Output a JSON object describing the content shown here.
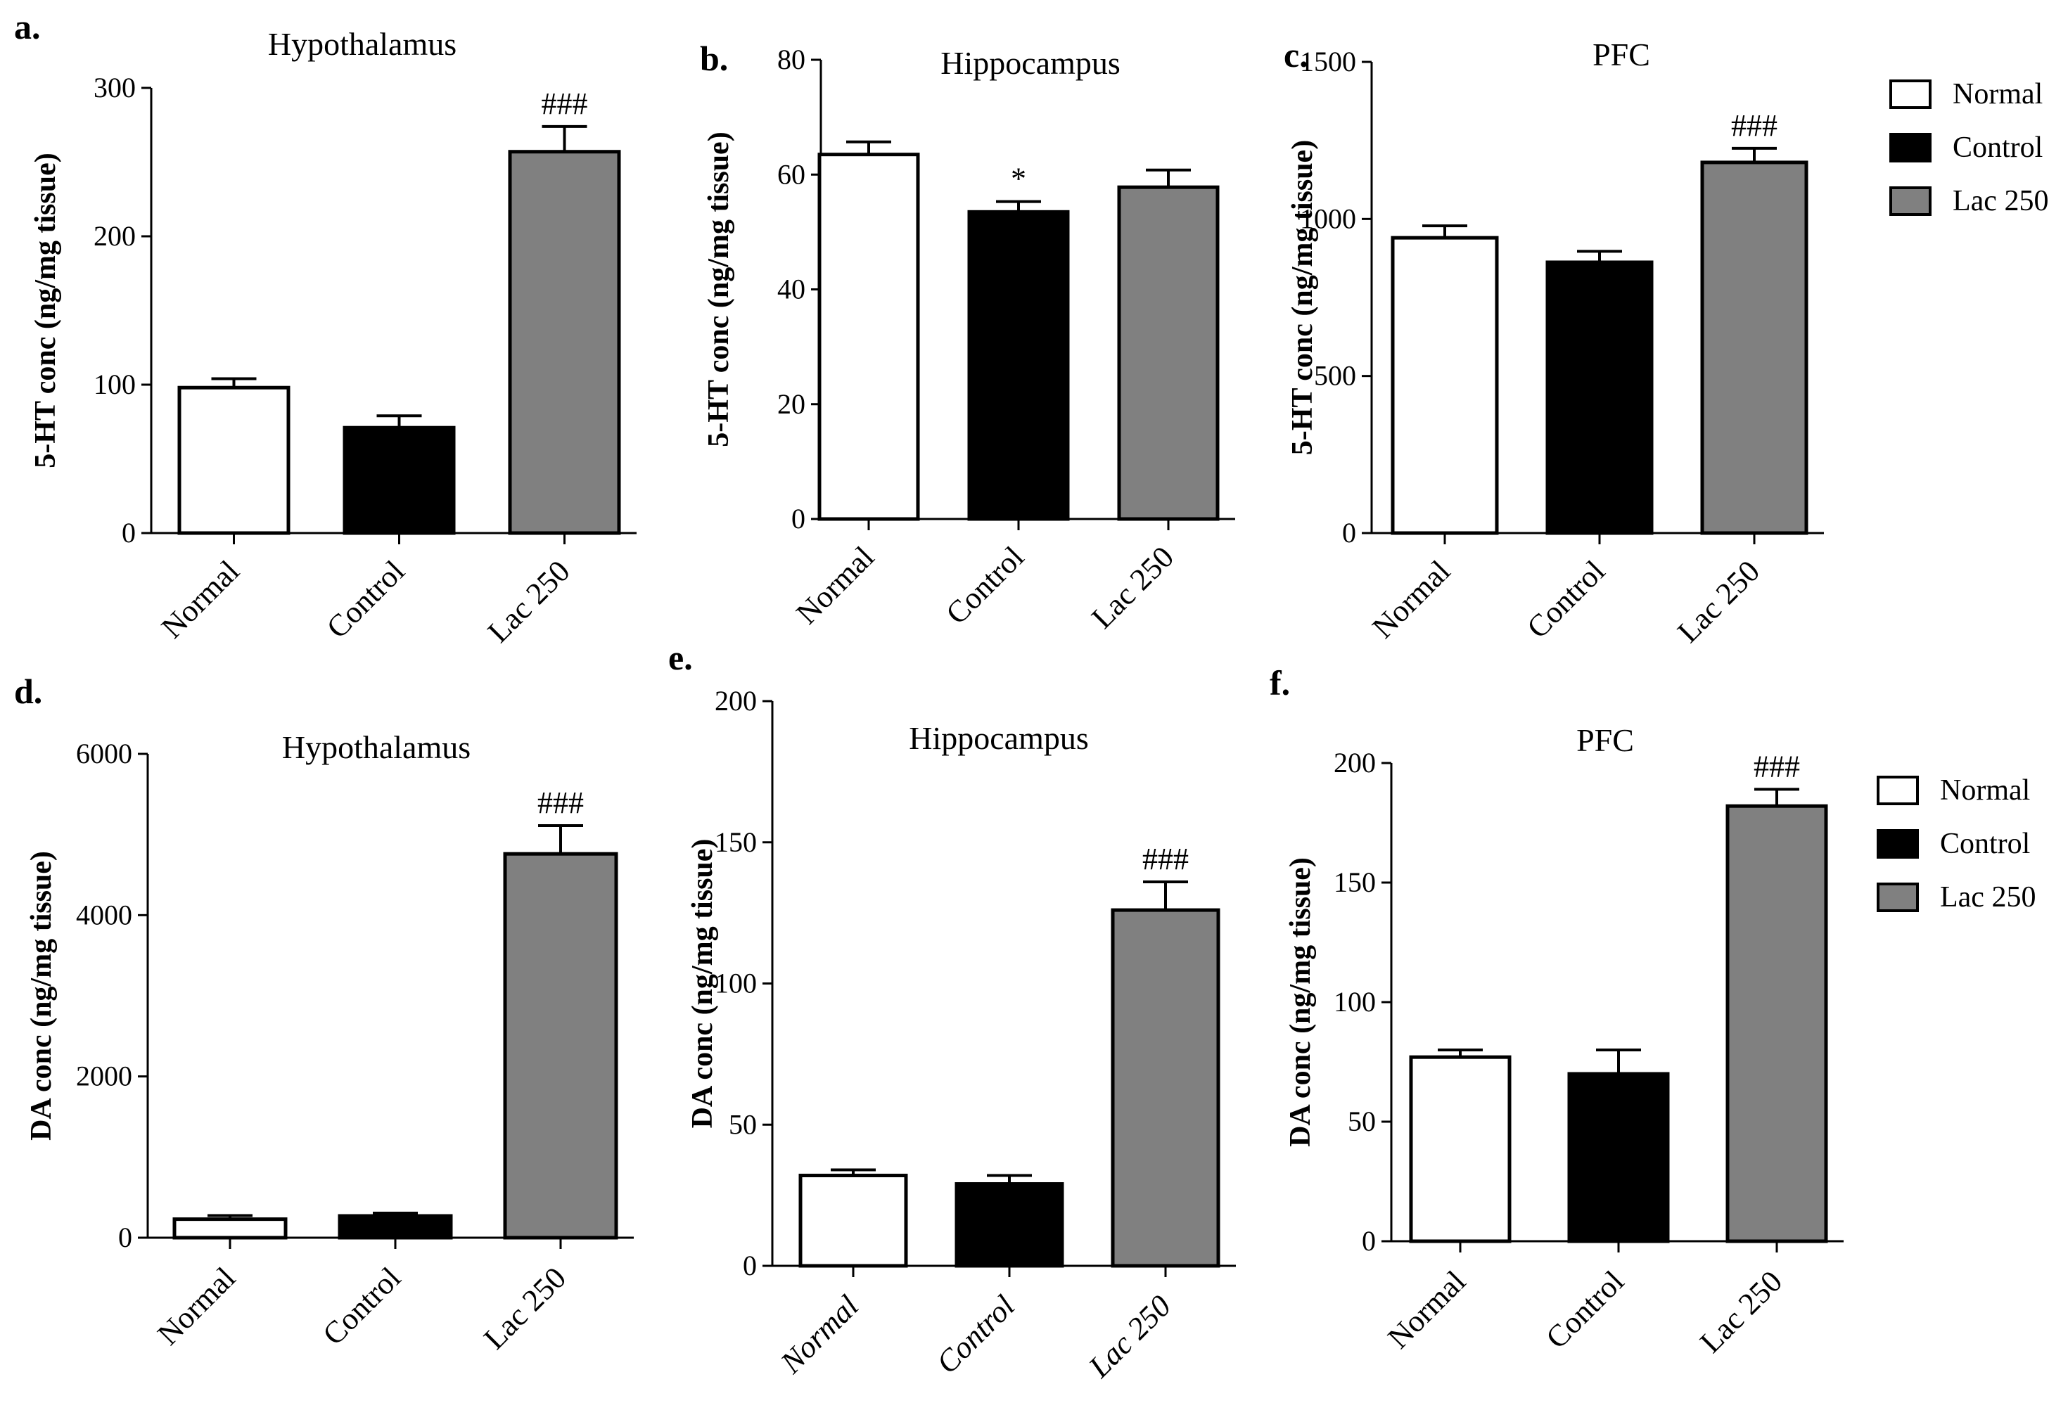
{
  "colors": {
    "Normal": "#ffffff",
    "Control": "#000000",
    "Lac 250": "#808080",
    "stroke": "#000000"
  },
  "legend": {
    "entries": [
      "Normal",
      "Control",
      "Lac 250"
    ]
  },
  "chart_data": [
    {
      "id": "a",
      "type": "bar",
      "panel_label": "a.",
      "title": "Hypothalamus",
      "ylabel": "5-HT conc (ng/mg tissue)",
      "categories": [
        "Normal",
        "Control",
        "Lac 250"
      ],
      "values": [
        98,
        71,
        257
      ],
      "errors": [
        6,
        8,
        17
      ],
      "annotations": [
        "",
        "",
        "###"
      ],
      "ylim": [
        0,
        300
      ],
      "yticks": [
        0,
        100,
        200,
        300
      ],
      "italic_categories": false
    },
    {
      "id": "b",
      "type": "bar",
      "panel_label": "b.",
      "title": "Hippocampus",
      "ylabel": "5-HT conc (ng/mg tissue)",
      "categories": [
        "Normal",
        "Control",
        "Lac 250"
      ],
      "values": [
        63.5,
        53.5,
        57.8
      ],
      "errors": [
        2.2,
        1.8,
        3.0
      ],
      "annotations": [
        "",
        "*",
        ""
      ],
      "ylim": [
        0,
        80
      ],
      "yticks": [
        0,
        20,
        40,
        60,
        80
      ],
      "italic_categories": false
    },
    {
      "id": "c",
      "type": "bar",
      "panel_label": "c.",
      "title": "PFC",
      "ylabel": "5-HT conc (ng/mg tissue)",
      "categories": [
        "Normal",
        "Control",
        "Lac 250"
      ],
      "values": [
        940,
        862,
        1180
      ],
      "errors": [
        38,
        35,
        45
      ],
      "annotations": [
        "",
        "",
        "###"
      ],
      "ylim": [
        0,
        1500
      ],
      "yticks": [
        0,
        500,
        1000,
        1500
      ],
      "italic_categories": false
    },
    {
      "id": "d",
      "type": "bar",
      "panel_label": "d.",
      "title": "Hypothalamus",
      "ylabel": "DA conc (ng/mg tissue)",
      "categories": [
        "Normal",
        "Control",
        "Lac 250"
      ],
      "values": [
        230,
        270,
        4760
      ],
      "errors": [
        45,
        35,
        350
      ],
      "annotations": [
        "",
        "",
        "###"
      ],
      "ylim": [
        0,
        6000
      ],
      "yticks": [
        0,
        2000,
        4000,
        6000
      ],
      "italic_categories": false
    },
    {
      "id": "e",
      "type": "bar",
      "panel_label": "e.",
      "title": "Hippocampus",
      "ylabel": "DA conc (ng/mg tissue)",
      "categories": [
        "Normal",
        "Control",
        "Lac 250"
      ],
      "values": [
        32,
        29,
        126
      ],
      "errors": [
        2,
        3,
        10
      ],
      "annotations": [
        "",
        "",
        "###"
      ],
      "ylim": [
        0,
        200
      ],
      "yticks": [
        0,
        50,
        100,
        150,
        200
      ],
      "italic_categories": true
    },
    {
      "id": "f",
      "type": "bar",
      "panel_label": "f.",
      "title": "PFC",
      "ylabel": "DA conc (ng/mg tissue)",
      "categories": [
        "Normal",
        "Control",
        "Lac 250"
      ],
      "values": [
        77,
        70,
        182
      ],
      "errors": [
        3,
        10,
        7
      ],
      "annotations": [
        "",
        "",
        "###"
      ],
      "ylim": [
        0,
        200
      ],
      "yticks": [
        0,
        50,
        100,
        150,
        200
      ],
      "italic_categories": false
    }
  ]
}
